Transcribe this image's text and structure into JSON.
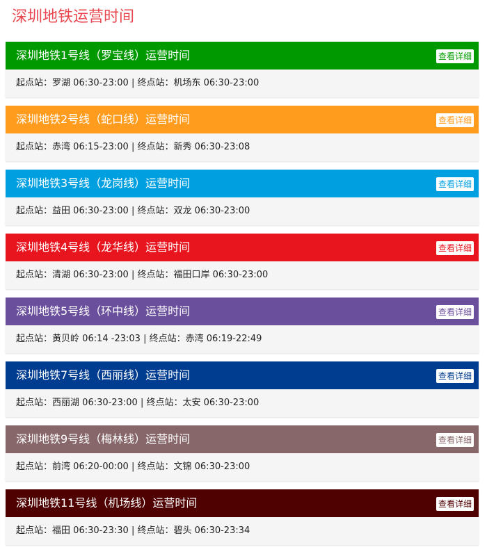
{
  "page": {
    "title": "深圳地铁运营时间"
  },
  "lines": [
    {
      "title": "深圳地铁1号线（罗宝线）运营时间",
      "detail_label": "查看详细",
      "color": "#009a00",
      "start_label": "起点站：",
      "start_station": "罗湖",
      "start_hours": "06:30-23:00",
      "separator": "|",
      "end_label": "终点站：",
      "end_station": "机场东",
      "end_hours": "06:30-23:00"
    },
    {
      "title": "深圳地铁2号线（蛇口线）运营时间",
      "detail_label": "查看详细",
      "color": "#ff9c1e",
      "start_label": "起点站：",
      "start_station": "赤湾",
      "start_hours": "06:15-23:00",
      "separator": "|",
      "end_label": "终点站：",
      "end_station": "新秀",
      "end_hours": "06:30-23:08"
    },
    {
      "title": "深圳地铁3号线（龙岗线）运营时间",
      "detail_label": "查看详细",
      "color": "#00a0e0",
      "start_label": "起点站：",
      "start_station": "益田",
      "start_hours": "06:30-23:00",
      "separator": "|",
      "end_label": "终点站：",
      "end_station": "双龙",
      "end_hours": "06:30-23:00"
    },
    {
      "title": "深圳地铁4号线（龙华线）运营时间",
      "detail_label": "查看详细",
      "color": "#e8141e",
      "start_label": "起点站：",
      "start_station": "清湖",
      "start_hours": "06:30-23:00",
      "separator": "|",
      "end_label": "终点站：",
      "end_station": "福田口岸",
      "end_hours": "06:30-23:00"
    },
    {
      "title": "深圳地铁5号线（环中线）运营时间",
      "detail_label": "查看详细",
      "color": "#6a4f9c",
      "start_label": "起点站：",
      "start_station": "黄贝岭",
      "start_hours": "06:14 -23:03",
      "separator": "|",
      "end_label": "终点站：",
      "end_station": "赤湾",
      "end_hours": "06:19-22:49"
    },
    {
      "title": "深圳地铁7号线（西丽线）运营时间",
      "detail_label": "查看详细",
      "color": "#003c8f",
      "start_label": "起点站：",
      "start_station": "西丽湖",
      "start_hours": "06:30-23:00",
      "separator": "|",
      "end_label": "终点站：",
      "end_station": "太安",
      "end_hours": "06:30-23:00"
    },
    {
      "title": "深圳地铁9号线（梅林线）运营时间",
      "detail_label": "查看详细",
      "color": "#87676a",
      "start_label": "起点站：",
      "start_station": "前湾",
      "start_hours": "06:20-00:00",
      "separator": "|",
      "end_label": "终点站：",
      "end_station": "文锦",
      "end_hours": "06:30-23:00"
    },
    {
      "title": "深圳地铁11号线（机场线）运营时间",
      "detail_label": "查看详细",
      "color": "#4f0000",
      "start_label": "起点站：",
      "start_station": "福田",
      "start_hours": "06:30-23:30",
      "separator": "|",
      "end_label": "终点站：",
      "end_station": "碧头",
      "end_hours": "06:30-23:34"
    }
  ]
}
